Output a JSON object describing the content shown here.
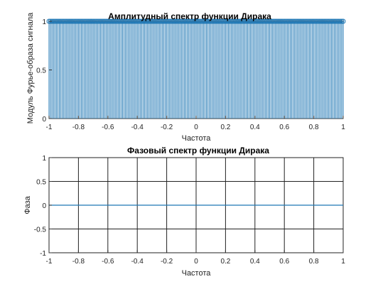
{
  "chart_data": [
    {
      "type": "stem",
      "title": "Амплитудный спектр функции Дирака",
      "xlabel": "Частота",
      "ylabel": "Модуль Фурье-образа сигнала",
      "xlim": [
        -1,
        1
      ],
      "ylim": [
        0,
        1
      ],
      "xticks": [
        "-1",
        "-0.8",
        "-0.6",
        "-0.4",
        "-0.2",
        "0",
        "0.2",
        "0.4",
        "0.6",
        "0.8",
        "1"
      ],
      "yticks": [
        "0",
        "0.5",
        "1"
      ],
      "grid": false,
      "series": [
        {
          "x_range": [
            -1,
            1
          ],
          "num_points": 201,
          "y_constant": 1,
          "color": "#1f77b4"
        }
      ]
    },
    {
      "type": "line",
      "title": "Фазовый спектр функции Дирака",
      "xlabel": "Частота",
      "ylabel": "Фаза",
      "xlim": [
        -1,
        1
      ],
      "ylim": [
        -1,
        1
      ],
      "xticks": [
        "-1",
        "-0.8",
        "-0.6",
        "-0.4",
        "-0.2",
        "0",
        "0.2",
        "0.4",
        "0.6",
        "0.8",
        "1"
      ],
      "yticks": [
        "-1",
        "-0.5",
        "0",
        "0.5",
        "1"
      ],
      "grid": true,
      "series": [
        {
          "x": [
            -1,
            1
          ],
          "y": [
            0,
            0
          ],
          "color": "#1f77b4"
        }
      ]
    }
  ]
}
